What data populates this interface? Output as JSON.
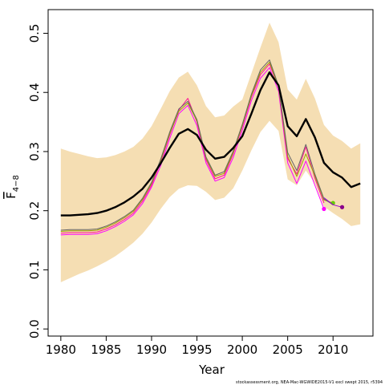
{
  "chart_data": {
    "type": "line",
    "xlabel": "Year",
    "ylabel": "F",
    "ylabel_sub": "4−8",
    "footer": "stockassessment.org,  NEA-Mac-WGWIDE2015-V1  excl  swept  2015, r5394",
    "xlim": [
      1978.6,
      2014.4
    ],
    "ylim": [
      -0.012,
      0.54
    ],
    "x_ticks": [
      1980,
      1985,
      1990,
      1995,
      2000,
      2005,
      2010
    ],
    "x_tick_labels": [
      "1980",
      "1985",
      "1990",
      "1995",
      "2000",
      "2005",
      "2010"
    ],
    "y_ticks": [
      0.0,
      0.1,
      0.2,
      0.3,
      0.4,
      0.5
    ],
    "y_tick_labels": [
      "0.0",
      "0.1",
      "0.2",
      "0.3",
      "0.4",
      "0.5"
    ],
    "band": {
      "color": "#f5deb3",
      "x": [
        1980,
        1981,
        1982,
        1983,
        1984,
        1985,
        1986,
        1987,
        1988,
        1989,
        1990,
        1991,
        1992,
        1993,
        1994,
        1995,
        1996,
        1997,
        1998,
        1999,
        2000,
        2001,
        2002,
        2003,
        2004,
        2005,
        2006,
        2007,
        2008,
        2009,
        2010,
        2011,
        2012,
        2013
      ],
      "upper": [
        0.305,
        0.3,
        0.296,
        0.292,
        0.289,
        0.29,
        0.294,
        0.3,
        0.308,
        0.322,
        0.343,
        0.372,
        0.402,
        0.425,
        0.435,
        0.412,
        0.377,
        0.358,
        0.361,
        0.376,
        0.388,
        0.432,
        0.476,
        0.518,
        0.485,
        0.405,
        0.388,
        0.423,
        0.39,
        0.345,
        0.327,
        0.318,
        0.305,
        0.314
      ],
      "lower": [
        0.079,
        0.086,
        0.093,
        0.099,
        0.106,
        0.114,
        0.123,
        0.134,
        0.146,
        0.161,
        0.18,
        0.203,
        0.223,
        0.237,
        0.243,
        0.242,
        0.232,
        0.218,
        0.222,
        0.238,
        0.268,
        0.302,
        0.333,
        0.352,
        0.335,
        0.253,
        0.243,
        0.268,
        0.246,
        0.207,
        0.196,
        0.186,
        0.174,
        0.177
      ]
    },
    "series": [
      {
        "color": "#000000",
        "width": 2.4,
        "x": [
          1980,
          1981,
          1982,
          1983,
          1984,
          1985,
          1986,
          1987,
          1988,
          1989,
          1990,
          1991,
          1992,
          1993,
          1994,
          1995,
          1996,
          1997,
          1998,
          1999,
          2000,
          2001,
          2002,
          2003,
          2004,
          2005,
          2006,
          2007,
          2008,
          2009,
          2010,
          2011,
          2012,
          2013
        ],
        "y": [
          0.192,
          0.192,
          0.193,
          0.194,
          0.196,
          0.2,
          0.206,
          0.214,
          0.224,
          0.237,
          0.256,
          0.28,
          0.306,
          0.33,
          0.338,
          0.328,
          0.303,
          0.288,
          0.291,
          0.306,
          0.326,
          0.364,
          0.404,
          0.434,
          0.412,
          0.343,
          0.326,
          0.355,
          0.324,
          0.281,
          0.265,
          0.256,
          0.24,
          0.246
        ]
      },
      {
        "color": "#ff00ff",
        "width": 1,
        "x": [
          1980,
          1981,
          1982,
          1983,
          1984,
          1985,
          1986,
          1987,
          1988,
          1989,
          1990,
          1991,
          1992,
          1993,
          1994,
          1995,
          1996,
          1997,
          1998,
          1999,
          2000,
          2001,
          2002,
          2003,
          2004,
          2005,
          2006,
          2007,
          2008,
          2009
        ],
        "y": [
          0.159,
          0.16,
          0.16,
          0.16,
          0.161,
          0.166,
          0.173,
          0.182,
          0.193,
          0.212,
          0.24,
          0.276,
          0.322,
          0.364,
          0.378,
          0.344,
          0.281,
          0.25,
          0.256,
          0.29,
          0.336,
          0.386,
          0.424,
          0.442,
          0.402,
          0.281,
          0.246,
          0.284,
          0.243,
          0.203
        ],
        "endpoint": true
      },
      {
        "color": "#ff1493",
        "width": 1,
        "x": [
          1980,
          1981,
          1982,
          1983,
          1984,
          1985,
          1986,
          1987,
          1988,
          1989,
          1990,
          1991,
          1992,
          1993,
          1994,
          1995,
          1996,
          1997,
          1998,
          1999,
          2000,
          2001,
          2002,
          2003,
          2004,
          2005,
          2006,
          2007,
          2008,
          2009
        ],
        "y": [
          0.162,
          0.163,
          0.163,
          0.163,
          0.164,
          0.169,
          0.176,
          0.185,
          0.196,
          0.216,
          0.243,
          0.282,
          0.328,
          0.37,
          0.39,
          0.35,
          0.286,
          0.254,
          0.26,
          0.296,
          0.342,
          0.392,
          0.43,
          0.448,
          0.408,
          0.288,
          0.262,
          0.308,
          0.255,
          0.213
        ]
      },
      {
        "color": "#a0a000",
        "width": 1,
        "x": [
          1980,
          1981,
          1982,
          1983,
          1984,
          1985,
          1986,
          1987,
          1988,
          1989,
          1990,
          1991,
          1992,
          1993,
          1994,
          1995,
          1996,
          1997,
          1998,
          1999,
          2000,
          2001,
          2002,
          2003,
          2004,
          2005,
          2006,
          2007,
          2008,
          2009,
          2010
        ],
        "y": [
          0.165,
          0.166,
          0.166,
          0.166,
          0.167,
          0.172,
          0.179,
          0.188,
          0.199,
          0.219,
          0.246,
          0.285,
          0.33,
          0.368,
          0.382,
          0.352,
          0.289,
          0.258,
          0.263,
          0.298,
          0.344,
          0.394,
          0.434,
          0.451,
          0.409,
          0.292,
          0.258,
          0.296,
          0.259,
          0.218,
          0.213
        ],
        "endpoint": true,
        "endpoint_color": "#66cc00"
      },
      {
        "color": "#666666",
        "width": 1,
        "x": [
          1980,
          1981,
          1982,
          1983,
          1984,
          1985,
          1986,
          1987,
          1988,
          1989,
          1990,
          1991,
          1992,
          1993,
          1994,
          1995,
          1996,
          1997,
          1998,
          1999,
          2000,
          2001,
          2002,
          2003,
          2004,
          2005,
          2006,
          2007,
          2008,
          2009,
          2010
        ],
        "y": [
          0.167,
          0.168,
          0.168,
          0.168,
          0.169,
          0.174,
          0.181,
          0.19,
          0.201,
          0.221,
          0.248,
          0.287,
          0.333,
          0.372,
          0.385,
          0.354,
          0.291,
          0.26,
          0.266,
          0.301,
          0.346,
          0.397,
          0.438,
          0.455,
          0.411,
          0.298,
          0.268,
          0.312,
          0.262,
          0.22,
          0.21
        ]
      },
      {
        "color": "#9400d3",
        "width": 1,
        "x": [
          2009,
          2010,
          2011
        ],
        "y": [
          0.222,
          0.21,
          0.206
        ],
        "endpoint": true,
        "endpoint_color": "#8b008b"
      }
    ]
  }
}
